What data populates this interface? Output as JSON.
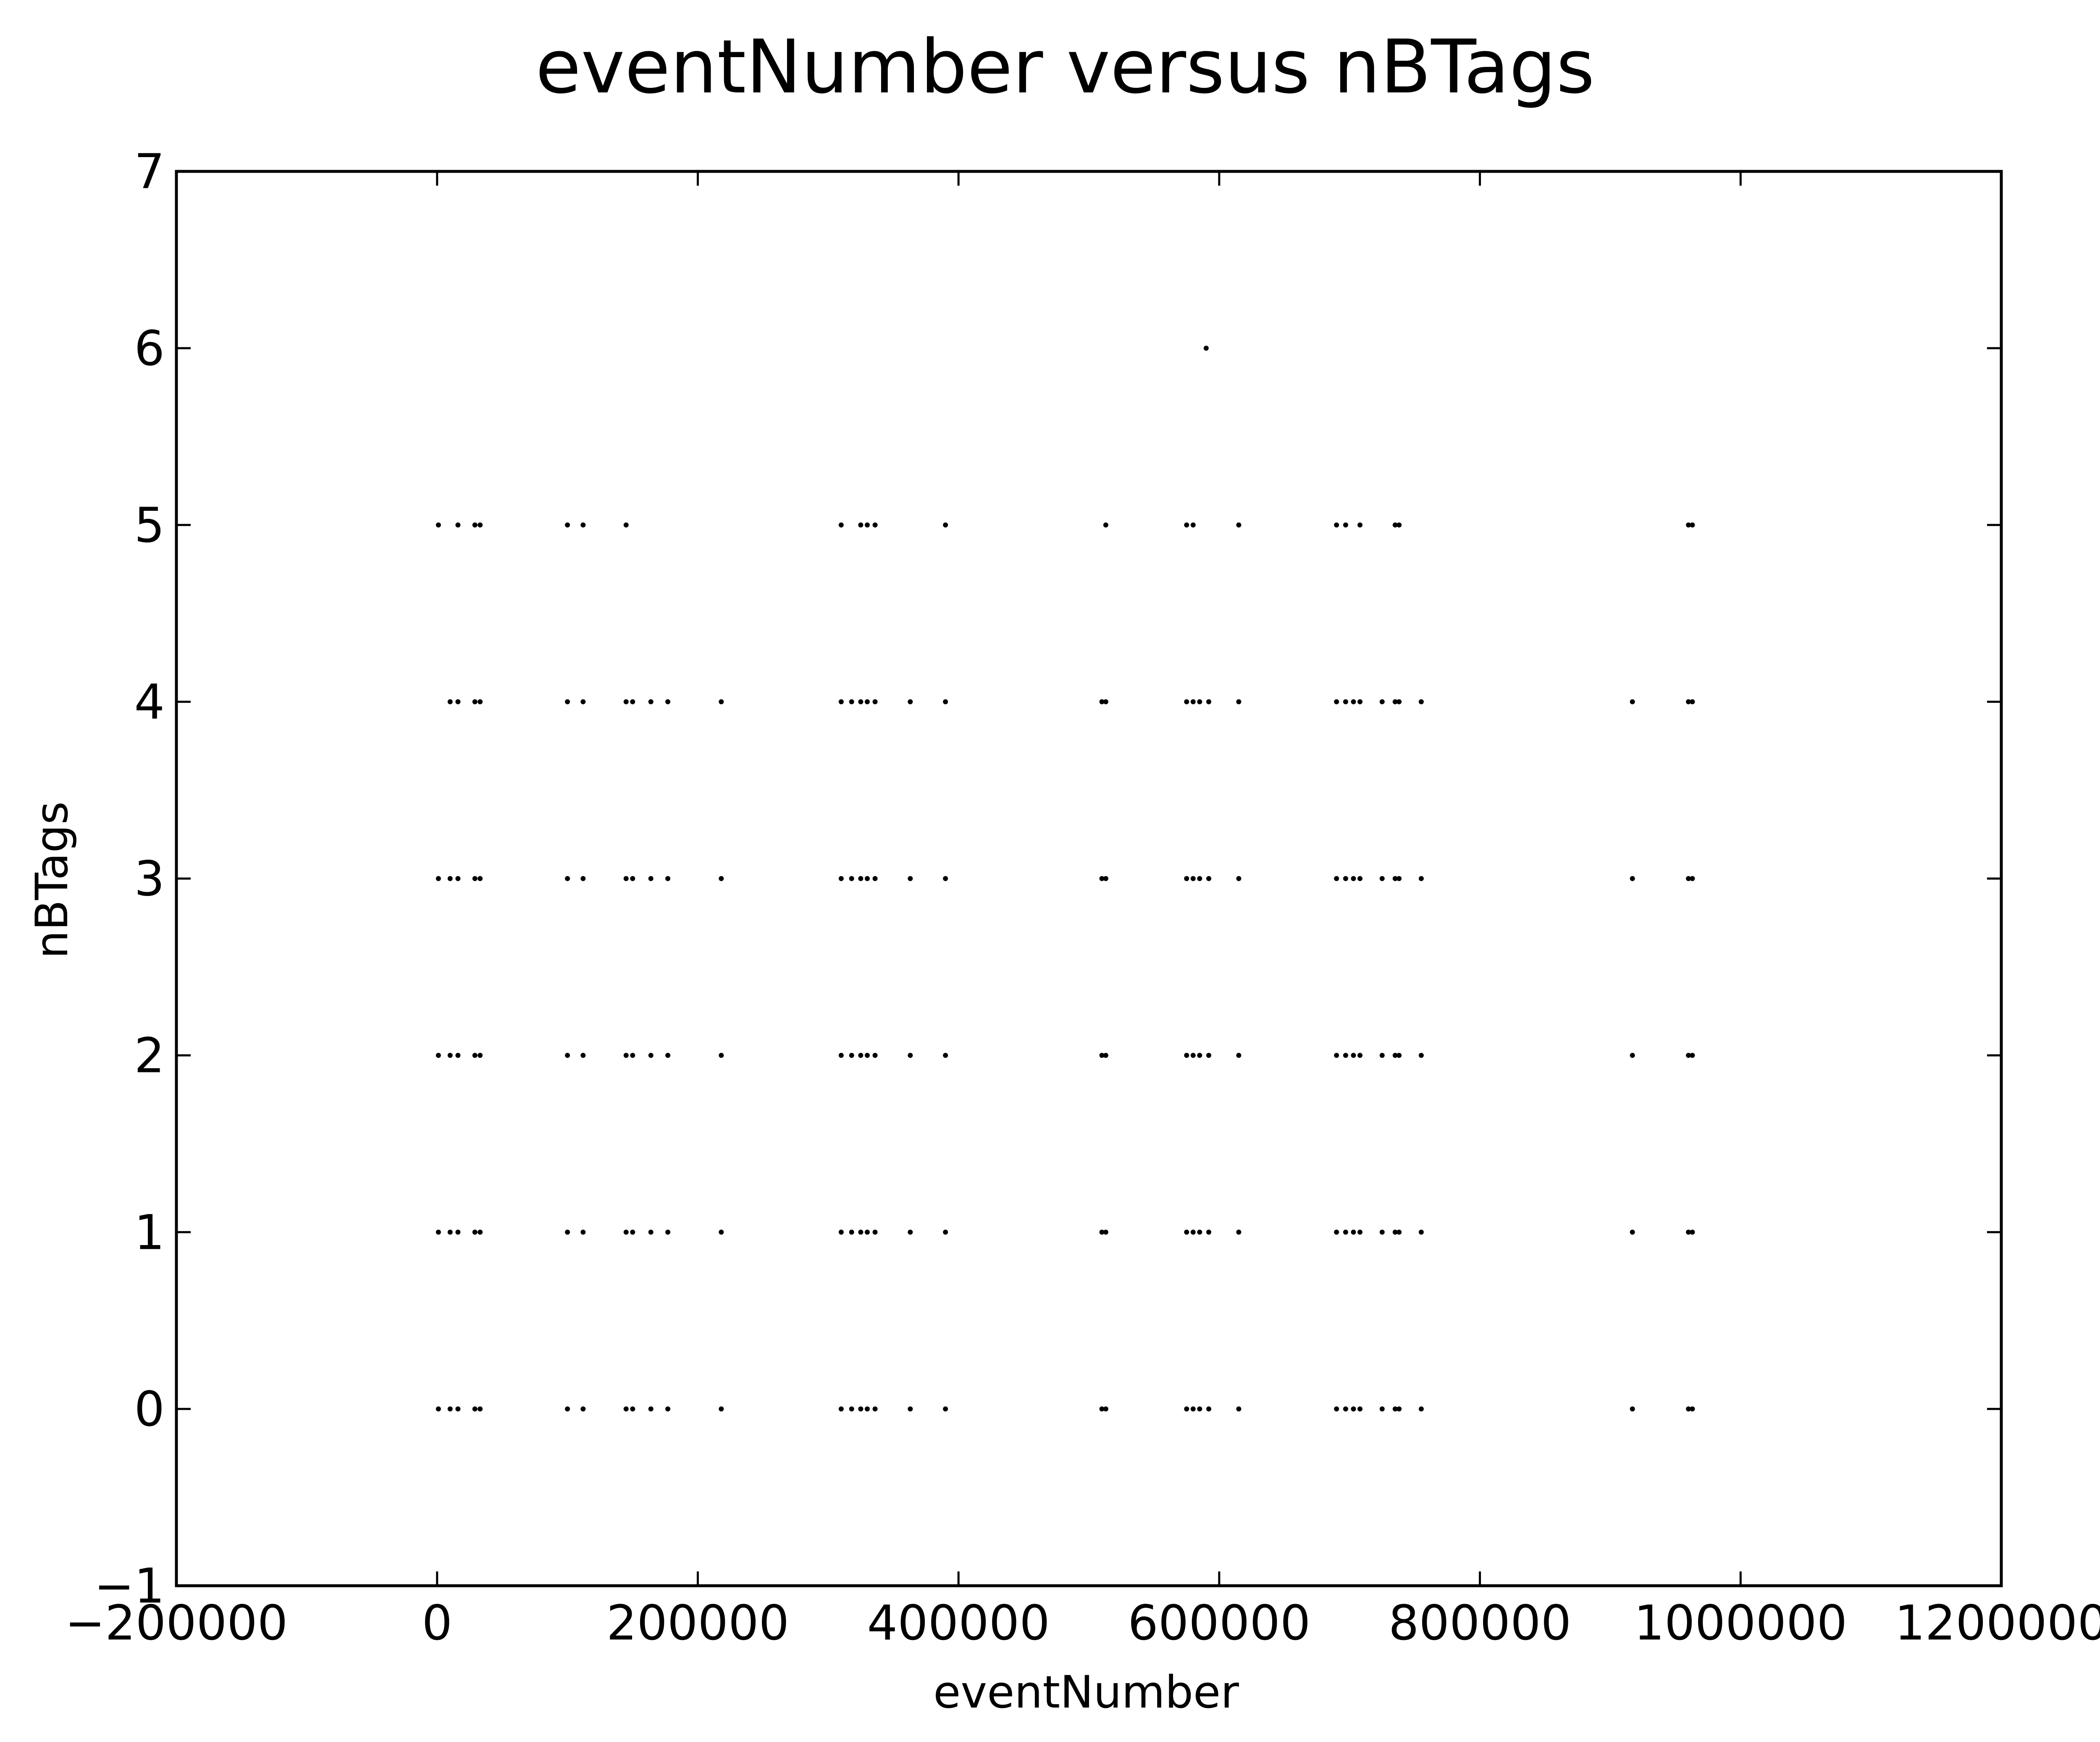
{
  "chart_data": {
    "type": "scatter",
    "title": "eventNumber versus nBTags",
    "xlabel": "eventNumber",
    "ylabel": "nBTags",
    "xlim": [
      -200000,
      1200000
    ],
    "ylim": [
      -1,
      7
    ],
    "xticks": [
      -200000,
      0,
      200000,
      400000,
      600000,
      800000,
      1000000,
      1200000
    ],
    "xtick_labels": [
      "−200000",
      "0",
      "200000",
      "400000",
      "600000",
      "800000",
      "1000000",
      "1200000"
    ],
    "yticks": [
      -1,
      0,
      1,
      2,
      3,
      4,
      5,
      6,
      7
    ],
    "ytick_labels": [
      "−1",
      "0",
      "1",
      "2",
      "3",
      "4",
      "5",
      "6",
      "7"
    ],
    "grid": false,
    "marker_color": "#000000",
    "series": [
      {
        "points": [
          [
            1000,
            0
          ],
          [
            10000,
            0
          ],
          [
            16000,
            0
          ],
          [
            29000,
            0
          ],
          [
            33000,
            0
          ],
          [
            100000,
            0
          ],
          [
            112000,
            0
          ],
          [
            145000,
            0
          ],
          [
            150000,
            0
          ],
          [
            164000,
            0
          ],
          [
            177000,
            0
          ],
          [
            218000,
            0
          ],
          [
            310000,
            0
          ],
          [
            318000,
            0
          ],
          [
            325000,
            0
          ],
          [
            330000,
            0
          ],
          [
            336000,
            0
          ],
          [
            363000,
            0
          ],
          [
            390000,
            0
          ],
          [
            510000,
            0
          ],
          [
            513000,
            0
          ],
          [
            575000,
            0
          ],
          [
            580000,
            0
          ],
          [
            585000,
            0
          ],
          [
            592000,
            0
          ],
          [
            615000,
            0
          ],
          [
            690000,
            0
          ],
          [
            697000,
            0
          ],
          [
            703000,
            0
          ],
          [
            708000,
            0
          ],
          [
            725000,
            0
          ],
          [
            735000,
            0
          ],
          [
            738000,
            0
          ],
          [
            755000,
            0
          ],
          [
            917000,
            0
          ],
          [
            960000,
            0
          ],
          [
            963000,
            0
          ],
          [
            1000,
            1
          ],
          [
            10000,
            1
          ],
          [
            16000,
            1
          ],
          [
            29000,
            1
          ],
          [
            33000,
            1
          ],
          [
            100000,
            1
          ],
          [
            112000,
            1
          ],
          [
            145000,
            1
          ],
          [
            150000,
            1
          ],
          [
            164000,
            1
          ],
          [
            177000,
            1
          ],
          [
            218000,
            1
          ],
          [
            310000,
            1
          ],
          [
            318000,
            1
          ],
          [
            325000,
            1
          ],
          [
            330000,
            1
          ],
          [
            336000,
            1
          ],
          [
            363000,
            1
          ],
          [
            390000,
            1
          ],
          [
            510000,
            1
          ],
          [
            513000,
            1
          ],
          [
            575000,
            1
          ],
          [
            580000,
            1
          ],
          [
            585000,
            1
          ],
          [
            592000,
            1
          ],
          [
            615000,
            1
          ],
          [
            690000,
            1
          ],
          [
            697000,
            1
          ],
          [
            703000,
            1
          ],
          [
            708000,
            1
          ],
          [
            725000,
            1
          ],
          [
            735000,
            1
          ],
          [
            738000,
            1
          ],
          [
            755000,
            1
          ],
          [
            917000,
            1
          ],
          [
            960000,
            1
          ],
          [
            963000,
            1
          ],
          [
            1000,
            2
          ],
          [
            10000,
            2
          ],
          [
            16000,
            2
          ],
          [
            29000,
            2
          ],
          [
            33000,
            2
          ],
          [
            100000,
            2
          ],
          [
            112000,
            2
          ],
          [
            145000,
            2
          ],
          [
            150000,
            2
          ],
          [
            164000,
            2
          ],
          [
            177000,
            2
          ],
          [
            218000,
            2
          ],
          [
            310000,
            2
          ],
          [
            318000,
            2
          ],
          [
            325000,
            2
          ],
          [
            330000,
            2
          ],
          [
            336000,
            2
          ],
          [
            363000,
            2
          ],
          [
            390000,
            2
          ],
          [
            510000,
            2
          ],
          [
            513000,
            2
          ],
          [
            575000,
            2
          ],
          [
            580000,
            2
          ],
          [
            585000,
            2
          ],
          [
            592000,
            2
          ],
          [
            615000,
            2
          ],
          [
            690000,
            2
          ],
          [
            697000,
            2
          ],
          [
            703000,
            2
          ],
          [
            708000,
            2
          ],
          [
            725000,
            2
          ],
          [
            735000,
            2
          ],
          [
            738000,
            2
          ],
          [
            755000,
            2
          ],
          [
            917000,
            2
          ],
          [
            960000,
            2
          ],
          [
            963000,
            2
          ],
          [
            1000,
            3
          ],
          [
            10000,
            3
          ],
          [
            16000,
            3
          ],
          [
            29000,
            3
          ],
          [
            33000,
            3
          ],
          [
            100000,
            3
          ],
          [
            112000,
            3
          ],
          [
            145000,
            3
          ],
          [
            150000,
            3
          ],
          [
            164000,
            3
          ],
          [
            177000,
            3
          ],
          [
            218000,
            3
          ],
          [
            310000,
            3
          ],
          [
            318000,
            3
          ],
          [
            325000,
            3
          ],
          [
            330000,
            3
          ],
          [
            336000,
            3
          ],
          [
            363000,
            3
          ],
          [
            390000,
            3
          ],
          [
            510000,
            3
          ],
          [
            513000,
            3
          ],
          [
            575000,
            3
          ],
          [
            580000,
            3
          ],
          [
            585000,
            3
          ],
          [
            592000,
            3
          ],
          [
            615000,
            3
          ],
          [
            690000,
            3
          ],
          [
            697000,
            3
          ],
          [
            703000,
            3
          ],
          [
            708000,
            3
          ],
          [
            725000,
            3
          ],
          [
            735000,
            3
          ],
          [
            738000,
            3
          ],
          [
            755000,
            3
          ],
          [
            917000,
            3
          ],
          [
            960000,
            3
          ],
          [
            963000,
            3
          ],
          [
            10000,
            4
          ],
          [
            16000,
            4
          ],
          [
            29000,
            4
          ],
          [
            33000,
            4
          ],
          [
            100000,
            4
          ],
          [
            112000,
            4
          ],
          [
            145000,
            4
          ],
          [
            150000,
            4
          ],
          [
            164000,
            4
          ],
          [
            177000,
            4
          ],
          [
            218000,
            4
          ],
          [
            310000,
            4
          ],
          [
            318000,
            4
          ],
          [
            325000,
            4
          ],
          [
            330000,
            4
          ],
          [
            336000,
            4
          ],
          [
            363000,
            4
          ],
          [
            390000,
            4
          ],
          [
            510000,
            4
          ],
          [
            513000,
            4
          ],
          [
            575000,
            4
          ],
          [
            580000,
            4
          ],
          [
            585000,
            4
          ],
          [
            592000,
            4
          ],
          [
            615000,
            4
          ],
          [
            690000,
            4
          ],
          [
            697000,
            4
          ],
          [
            703000,
            4
          ],
          [
            708000,
            4
          ],
          [
            725000,
            4
          ],
          [
            735000,
            4
          ],
          [
            738000,
            4
          ],
          [
            755000,
            4
          ],
          [
            917000,
            4
          ],
          [
            960000,
            4
          ],
          [
            963000,
            4
          ],
          [
            1000,
            5
          ],
          [
            16000,
            5
          ],
          [
            29000,
            5
          ],
          [
            33000,
            5
          ],
          [
            100000,
            5
          ],
          [
            112000,
            5
          ],
          [
            145000,
            5
          ],
          [
            310000,
            5
          ],
          [
            325000,
            5
          ],
          [
            330000,
            5
          ],
          [
            336000,
            5
          ],
          [
            390000,
            5
          ],
          [
            513000,
            5
          ],
          [
            575000,
            5
          ],
          [
            580000,
            5
          ],
          [
            615000,
            5
          ],
          [
            690000,
            5
          ],
          [
            697000,
            5
          ],
          [
            708000,
            5
          ],
          [
            735000,
            5
          ],
          [
            738000,
            5
          ],
          [
            960000,
            5
          ],
          [
            963000,
            5
          ],
          [
            590000,
            6
          ]
        ]
      }
    ]
  }
}
